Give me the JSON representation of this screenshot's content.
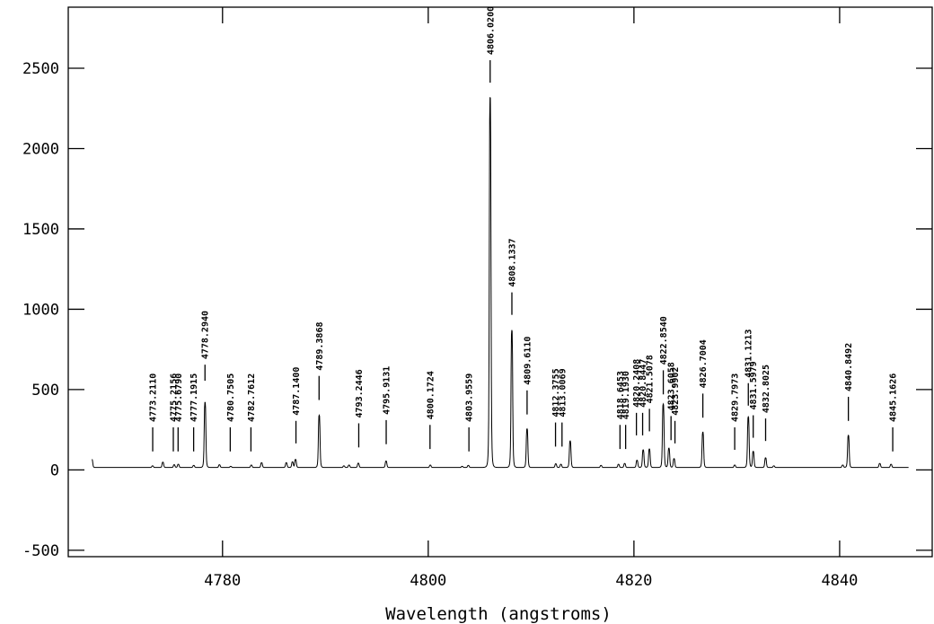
{
  "chart_data": {
    "type": "line",
    "title": "",
    "xlabel": "Wavelength (angstroms)",
    "ylabel": "",
    "xlim": [
      4765.0,
      4849.0
    ],
    "ylim": [
      -540,
      2880
    ],
    "grid": false,
    "legend": "none",
    "x_ticks": [
      4780,
      4800,
      4820,
      4840
    ],
    "y_ticks": [
      -500,
      0,
      500,
      1000,
      1500,
      2000,
      2500
    ],
    "x_tick_labels": [
      "4780",
      "4800",
      "4820",
      "4840"
    ],
    "y_tick_labels": [
      "-500",
      "0",
      "500",
      "1000",
      "1500",
      "2000",
      "2500"
    ],
    "continuum": 15,
    "spectrum_range": [
      4767.3,
      4846.7
    ],
    "peaks": [
      {
        "x": 4767.3,
        "y": 65
      },
      {
        "x": 4773.2,
        "y": 25
      },
      {
        "x": 4774.2,
        "y": 48
      },
      {
        "x": 4775.3,
        "y": 32
      },
      {
        "x": 4775.7,
        "y": 35
      },
      {
        "x": 4777.2,
        "y": 28
      },
      {
        "x": 4778.3,
        "y": 420
      },
      {
        "x": 4779.7,
        "y": 32
      },
      {
        "x": 4780.8,
        "y": 22
      },
      {
        "x": 4782.8,
        "y": 30
      },
      {
        "x": 4783.8,
        "y": 45
      },
      {
        "x": 4786.2,
        "y": 45
      },
      {
        "x": 4786.8,
        "y": 50
      },
      {
        "x": 4787.1,
        "y": 65
      },
      {
        "x": 4789.4,
        "y": 340
      },
      {
        "x": 4791.8,
        "y": 25
      },
      {
        "x": 4792.3,
        "y": 30
      },
      {
        "x": 4793.2,
        "y": 42
      },
      {
        "x": 4795.9,
        "y": 55
      },
      {
        "x": 4800.2,
        "y": 30
      },
      {
        "x": 4803.3,
        "y": 22
      },
      {
        "x": 4803.9,
        "y": 28
      },
      {
        "x": 4806.02,
        "y": 2320
      },
      {
        "x": 4808.13,
        "y": 870
      },
      {
        "x": 4809.61,
        "y": 255
      },
      {
        "x": 4812.4,
        "y": 38
      },
      {
        "x": 4812.9,
        "y": 35
      },
      {
        "x": 4813.8,
        "y": 180
      },
      {
        "x": 4816.8,
        "y": 28
      },
      {
        "x": 4818.5,
        "y": 35
      },
      {
        "x": 4819.1,
        "y": 40
      },
      {
        "x": 4820.3,
        "y": 60
      },
      {
        "x": 4820.9,
        "y": 125
      },
      {
        "x": 4821.5,
        "y": 130
      },
      {
        "x": 4822.85,
        "y": 410
      },
      {
        "x": 4823.4,
        "y": 135
      },
      {
        "x": 4823.9,
        "y": 70
      },
      {
        "x": 4826.7,
        "y": 235
      },
      {
        "x": 4829.8,
        "y": 30
      },
      {
        "x": 4831.12,
        "y": 330
      },
      {
        "x": 4831.6,
        "y": 115
      },
      {
        "x": 4832.8,
        "y": 75
      },
      {
        "x": 4833.6,
        "y": 25
      },
      {
        "x": 4840.3,
        "y": 30
      },
      {
        "x": 4840.85,
        "y": 215
      },
      {
        "x": 4843.9,
        "y": 40
      },
      {
        "x": 4845.0,
        "y": 35
      }
    ],
    "line_markers": [
      {
        "x": 4773.211,
        "label": "4773.2110",
        "bottom": 115,
        "top": 265
      },
      {
        "x": 4775.2156,
        "label": "4775.2156",
        "bottom": 115,
        "top": 265
      },
      {
        "x": 4775.679,
        "label": "4775.6790",
        "bottom": 115,
        "top": 265
      },
      {
        "x": 4777.1915,
        "label": "4777.1915",
        "bottom": 115,
        "top": 265
      },
      {
        "x": 4778.294,
        "label": "4778.2940",
        "bottom": 555,
        "top": 655
      },
      {
        "x": 4780.7505,
        "label": "4780.7505",
        "bottom": 115,
        "top": 265
      },
      {
        "x": 4782.7612,
        "label": "4782.7612",
        "bottom": 115,
        "top": 265
      },
      {
        "x": 4787.14,
        "label": "4787.1400",
        "bottom": 165,
        "top": 305
      },
      {
        "x": 4789.3868,
        "label": "4789.3868",
        "bottom": 435,
        "top": 585
      },
      {
        "x": 4793.2446,
        "label": "4793.2446",
        "bottom": 140,
        "top": 290
      },
      {
        "x": 4795.9131,
        "label": "4795.9131",
        "bottom": 160,
        "top": 310
      },
      {
        "x": 4800.1724,
        "label": "4800.1724",
        "bottom": 130,
        "top": 280
      },
      {
        "x": 4803.9559,
        "label": "4803.9559",
        "bottom": 115,
        "top": 265
      },
      {
        "x": 4806.02,
        "label": "4806.0200",
        "bottom": 2410,
        "top": 2550
      },
      {
        "x": 4808.1337,
        "label": "4808.1337",
        "bottom": 965,
        "top": 1105
      },
      {
        "x": 4809.611,
        "label": "4809.6110",
        "bottom": 345,
        "top": 495
      },
      {
        "x": 4812.3755,
        "label": "4812.3755",
        "bottom": 145,
        "top": 295
      },
      {
        "x": 4813.0069,
        "label": "4813.0069",
        "bottom": 145,
        "top": 295
      },
      {
        "x": 4818.6453,
        "label": "4818.6453",
        "bottom": 130,
        "top": 280
      },
      {
        "x": 4819.193,
        "label": "4819.1930",
        "bottom": 130,
        "top": 280
      },
      {
        "x": 4820.2408,
        "label": "4820.2408",
        "bottom": 215,
        "top": 355
      },
      {
        "x": 4820.8447,
        "label": "4820.8447",
        "bottom": 215,
        "top": 355
      },
      {
        "x": 4821.5078,
        "label": "4821.5078",
        "bottom": 240,
        "top": 380
      },
      {
        "x": 4822.854,
        "label": "4822.8540",
        "bottom": 470,
        "top": 620
      },
      {
        "x": 4823.6058,
        "label": "4823.6058",
        "bottom": 185,
        "top": 335
      },
      {
        "x": 4823.9902,
        "label": "4823.9902",
        "bottom": 165,
        "top": 305
      },
      {
        "x": 4826.7004,
        "label": "4826.7004",
        "bottom": 325,
        "top": 475
      },
      {
        "x": 4829.7973,
        "label": "4829.7973",
        "bottom": 125,
        "top": 265
      },
      {
        "x": 4831.1213,
        "label": "4831.1213",
        "bottom": 400,
        "top": 540
      },
      {
        "x": 4831.5979,
        "label": "4831.5979",
        "bottom": 200,
        "top": 340
      },
      {
        "x": 4832.8025,
        "label": "4832.8025",
        "bottom": 180,
        "top": 320
      },
      {
        "x": 4840.8492,
        "label": "4840.8492",
        "bottom": 305,
        "top": 455
      },
      {
        "x": 4845.1626,
        "label": "4845.1626",
        "bottom": 115,
        "top": 265
      }
    ]
  }
}
